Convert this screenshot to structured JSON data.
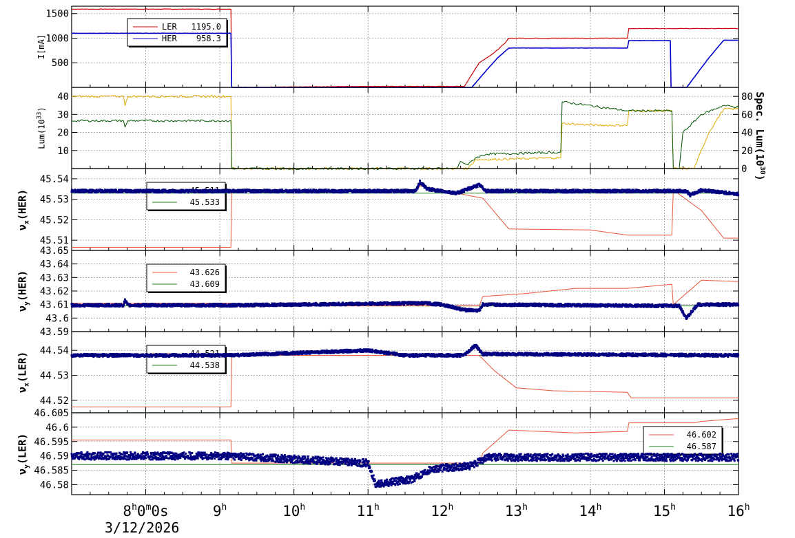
{
  "colors": {
    "ler": "#cc0000",
    "her": "#0000cc",
    "lum_gold": "#e0a800",
    "lum_green": "#005500",
    "tune_ref": "#e8553a",
    "tune_meas": "#000080",
    "tune_line": "#208020",
    "grid": "#999999"
  },
  "x_axis": {
    "range": [
      7.0,
      16.0
    ],
    "ticks": [
      {
        "v": 8,
        "label": "8",
        "sup": "h",
        "label2": "0",
        "sup2": "m",
        "label3": "0s"
      },
      {
        "v": 9,
        "label": "9",
        "sup": "h"
      },
      {
        "v": 10,
        "label": "10",
        "sup": "h"
      },
      {
        "v": 11,
        "label": "11",
        "sup": "h"
      },
      {
        "v": 12,
        "label": "12",
        "sup": "h"
      },
      {
        "v": 13,
        "label": "13",
        "sup": "h"
      },
      {
        "v": 14,
        "label": "14",
        "sup": "h"
      },
      {
        "v": 15,
        "label": "15",
        "sup": "h"
      },
      {
        "v": 16,
        "label": "16",
        "sup": "h"
      }
    ],
    "date": "3/12/2026"
  },
  "panels": [
    {
      "id": "current",
      "ylabel": "I[mA]",
      "ylim": [
        0,
        1650
      ],
      "yticks": [
        {
          "v": 500,
          "t": "500"
        },
        {
          "v": 1000,
          "t": "1000"
        },
        {
          "v": 1500,
          "t": "1500"
        }
      ],
      "legend": [
        {
          "name": "LER",
          "value": "1195.0",
          "color": "#cc0000"
        },
        {
          "name": "HER",
          "value": "958.3",
          "color": "#0000cc"
        }
      ]
    },
    {
      "id": "lumi",
      "ylabel": "Lum(10",
      "ylabel_sup": "33",
      "ylabel_end": ")",
      "ylim": [
        0,
        45
      ],
      "yticks": [
        {
          "v": 10,
          "t": "10"
        },
        {
          "v": 20,
          "t": "20"
        },
        {
          "v": 30,
          "t": "30"
        },
        {
          "v": 40,
          "t": "40"
        }
      ],
      "y2label": "Spec. Lum(10",
      "y2label_sup": "30",
      "y2label_end": ")",
      "y2lim": [
        0,
        90
      ],
      "y2ticks": [
        {
          "v": 0,
          "t": "0"
        },
        {
          "v": 20,
          "t": "20"
        },
        {
          "v": 40,
          "t": "40"
        },
        {
          "v": 60,
          "t": "60"
        },
        {
          "v": 80,
          "t": "80"
        }
      ]
    },
    {
      "id": "nux_her",
      "ylabel": "ν",
      "ylabel_sub": "x",
      "ylabel_end": "(HER)",
      "ylim": [
        45.505,
        45.545
      ],
      "yticks": [
        {
          "v": 45.51,
          "t": "45.51"
        },
        {
          "v": 45.52,
          "t": "45.52"
        },
        {
          "v": 45.53,
          "t": "45.53"
        },
        {
          "v": 45.54,
          "t": "45.54"
        }
      ],
      "legend": [
        {
          "value": "45.511",
          "color": "#e8553a"
        },
        {
          "value": "45.533",
          "color": "#208020"
        }
      ]
    },
    {
      "id": "nuy_her",
      "ylabel": "ν",
      "ylabel_sub": "y",
      "ylabel_end": "(HER)",
      "ylim": [
        43.59,
        43.65
      ],
      "yticks": [
        {
          "v": 43.59,
          "t": "43.59"
        },
        {
          "v": 43.6,
          "t": "43.6"
        },
        {
          "v": 43.61,
          "t": "43.61"
        },
        {
          "v": 43.62,
          "t": "43.62"
        },
        {
          "v": 43.63,
          "t": "43.63"
        },
        {
          "v": 43.64,
          "t": "43.64"
        },
        {
          "v": 43.65,
          "t": "43.65"
        }
      ],
      "legend": [
        {
          "value": "43.626",
          "color": "#e8553a"
        },
        {
          "value": "43.609",
          "color": "#208020"
        }
      ]
    },
    {
      "id": "nux_ler",
      "ylabel": "ν",
      "ylabel_sub": "x",
      "ylabel_end": "(LER)",
      "ylim": [
        44.515,
        44.5475
      ],
      "yticks": [
        {
          "v": 44.52,
          "t": "44.52"
        },
        {
          "v": 44.53,
          "t": "44.53"
        },
        {
          "v": 44.54,
          "t": "44.54"
        }
      ],
      "legend": [
        {
          "value": "44.521",
          "color": "#e8553a"
        },
        {
          "value": "44.538",
          "color": "#208020"
        }
      ]
    },
    {
      "id": "nuy_ler",
      "ylabel": "ν",
      "ylabel_sub": "y",
      "ylabel_end": "(LER)",
      "ylim": [
        46.5765,
        46.605
      ],
      "yticks": [
        {
          "v": 46.58,
          "t": "46.58"
        },
        {
          "v": 46.585,
          "t": "46.585"
        },
        {
          "v": 46.59,
          "t": "46.59"
        },
        {
          "v": 46.595,
          "t": "46.595"
        },
        {
          "v": 46.6,
          "t": "46.6"
        },
        {
          "v": 46.605,
          "t": "46.605"
        }
      ],
      "legend": [
        {
          "value": "46.602",
          "color": "#e8553a"
        },
        {
          "value": "46.587",
          "color": "#208020"
        }
      ]
    }
  ],
  "chart_data": {
    "type": "line",
    "x_unit": "hour of day",
    "series": [
      {
        "name": "LER",
        "panel": "current",
        "points": [
          [
            7.0,
            1590
          ],
          [
            9.15,
            1590
          ],
          [
            9.16,
            0
          ],
          [
            11.0,
            20
          ],
          [
            12.3,
            20
          ],
          [
            12.5,
            500
          ],
          [
            12.7,
            700
          ],
          [
            12.85,
            900
          ],
          [
            12.9,
            1000
          ],
          [
            14.5,
            1000
          ],
          [
            14.52,
            1195
          ],
          [
            16.0,
            1195
          ]
        ]
      },
      {
        "name": "HER",
        "panel": "current",
        "points": [
          [
            7.0,
            1100
          ],
          [
            9.15,
            1100
          ],
          [
            9.16,
            0
          ],
          [
            11.0,
            0
          ],
          [
            12.4,
            0
          ],
          [
            12.6,
            350
          ],
          [
            12.75,
            600
          ],
          [
            12.9,
            800
          ],
          [
            14.5,
            800
          ],
          [
            14.52,
            950
          ],
          [
            15.08,
            950
          ],
          [
            15.09,
            0
          ],
          [
            15.3,
            0
          ],
          [
            15.6,
            600
          ],
          [
            15.8,
            958
          ],
          [
            16.0,
            958
          ]
        ]
      },
      {
        "name": "",
        "panel": "lumi",
        "points": [
          [
            7.0,
            40
          ],
          [
            7.7,
            40
          ],
          [
            7.72,
            35
          ],
          [
            7.76,
            40
          ],
          [
            9.15,
            40
          ],
          [
            9.16,
            0
          ],
          [
            12.35,
            0
          ],
          [
            12.45,
            5
          ],
          [
            12.6,
            5
          ],
          [
            13.6,
            6
          ],
          [
            13.62,
            25
          ],
          [
            14.1,
            24
          ],
          [
            14.5,
            24
          ],
          [
            14.52,
            32
          ],
          [
            15.1,
            32
          ],
          [
            15.12,
            0
          ],
          [
            15.4,
            0
          ],
          [
            15.6,
            20
          ],
          [
            15.8,
            33
          ],
          [
            16.0,
            33
          ]
        ]
      },
      {
        "name": "",
        "panel": "lumi",
        "points": [
          [
            7.0,
            26.5
          ],
          [
            7.7,
            26.5
          ],
          [
            7.72,
            23
          ],
          [
            7.76,
            26.5
          ],
          [
            9.15,
            26.5
          ],
          [
            9.16,
            0
          ],
          [
            12.2,
            0
          ],
          [
            12.25,
            4
          ],
          [
            12.35,
            2
          ],
          [
            12.45,
            6
          ],
          [
            12.6,
            8
          ],
          [
            13.6,
            9
          ],
          [
            13.62,
            37
          ],
          [
            14.5,
            32
          ],
          [
            15.1,
            32
          ],
          [
            15.12,
            0
          ],
          [
            15.2,
            0
          ],
          [
            15.25,
            20
          ],
          [
            15.5,
            30
          ],
          [
            15.8,
            35
          ],
          [
            16.0,
            34
          ]
        ]
      },
      {
        "name": "",
        "panel": "nux_her",
        "points": [
          [
            7.0,
            45.5065
          ],
          [
            9.15,
            45.5065
          ],
          [
            9.16,
            45.534
          ],
          [
            11.65,
            45.534
          ],
          [
            11.7,
            45.5365
          ],
          [
            12.55,
            45.5305
          ],
          [
            12.9,
            45.5155
          ],
          [
            14.0,
            45.515
          ],
          [
            14.5,
            45.5125
          ],
          [
            15.1,
            45.5125
          ],
          [
            15.12,
            45.5345
          ],
          [
            15.5,
            45.5245
          ],
          [
            15.8,
            45.511
          ],
          [
            16.0,
            45.511
          ]
        ]
      },
      {
        "name": "",
        "panel": "nux_her",
        "points": [
          [
            7.0,
            45.534
          ],
          [
            11.65,
            45.534
          ],
          [
            11.7,
            45.5385
          ],
          [
            11.8,
            45.535
          ],
          [
            12.2,
            45.533
          ],
          [
            12.5,
            45.537
          ],
          [
            12.6,
            45.534
          ],
          [
            15.3,
            45.534
          ],
          [
            15.35,
            45.532
          ],
          [
            15.5,
            45.5345
          ],
          [
            16.0,
            45.5325
          ]
        ]
      },
      {
        "name": "",
        "panel": "nuy_her",
        "points": [
          [
            7.0,
            43.611
          ],
          [
            9.15,
            43.611
          ],
          [
            9.16,
            43.609
          ],
          [
            12.5,
            43.609
          ],
          [
            12.55,
            43.616
          ],
          [
            13.1,
            43.618
          ],
          [
            13.8,
            43.622
          ],
          [
            14.5,
            43.622
          ],
          [
            15.1,
            43.625
          ],
          [
            15.12,
            43.61
          ],
          [
            15.5,
            43.628
          ],
          [
            16.0,
            43.627
          ]
        ]
      },
      {
        "name": "",
        "panel": "nuy_her",
        "points": [
          [
            7.0,
            43.6095
          ],
          [
            7.7,
            43.6095
          ],
          [
            7.72,
            43.613
          ],
          [
            7.76,
            43.6095
          ],
          [
            9.15,
            43.6095
          ],
          [
            11.75,
            43.611
          ],
          [
            12.0,
            43.61
          ],
          [
            12.3,
            43.606
          ],
          [
            12.5,
            43.6055
          ],
          [
            12.55,
            43.61
          ],
          [
            15.2,
            43.609
          ],
          [
            15.3,
            43.6
          ],
          [
            15.45,
            43.61
          ],
          [
            16.0,
            43.61
          ]
        ]
      },
      {
        "name": "",
        "panel": "nux_ler",
        "points": [
          [
            7.0,
            44.5173
          ],
          [
            9.15,
            44.5173
          ],
          [
            9.16,
            44.538
          ],
          [
            12.5,
            44.538
          ],
          [
            12.7,
            44.532
          ],
          [
            13.0,
            44.525
          ],
          [
            13.5,
            44.5238
          ],
          [
            14.5,
            44.5232
          ],
          [
            14.55,
            44.521
          ],
          [
            16.0,
            44.521
          ]
        ]
      },
      {
        "name": "",
        "panel": "nux_ler",
        "points": [
          [
            7.0,
            44.538
          ],
          [
            9.15,
            44.538
          ],
          [
            11.0,
            44.54
          ],
          [
            11.5,
            44.538
          ],
          [
            11.6,
            44.538
          ],
          [
            11.8,
            44.538
          ],
          [
            12.3,
            44.538
          ],
          [
            12.45,
            44.542
          ],
          [
            12.55,
            44.5385
          ],
          [
            16.0,
            44.538
          ]
        ]
      },
      {
        "name": "",
        "panel": "nuy_ler",
        "points": [
          [
            7.0,
            46.5955
          ],
          [
            9.15,
            46.5955
          ],
          [
            9.16,
            46.5875
          ],
          [
            12.5,
            46.5875
          ],
          [
            12.55,
            46.591
          ],
          [
            12.9,
            46.599
          ],
          [
            13.8,
            46.598
          ],
          [
            14.5,
            46.5985
          ],
          [
            14.52,
            46.6015
          ],
          [
            15.4,
            46.6015
          ],
          [
            15.5,
            46.602
          ],
          [
            16.0,
            46.603
          ]
        ]
      },
      {
        "name": "",
        "panel": "nuy_ler",
        "points": [
          [
            7.0,
            46.59
          ],
          [
            9.15,
            46.59
          ],
          [
            11.0,
            46.5875
          ],
          [
            11.1,
            46.58
          ],
          [
            11.6,
            46.582
          ],
          [
            11.85,
            46.5855
          ],
          [
            12.4,
            46.5865
          ],
          [
            12.5,
            46.588
          ],
          [
            12.6,
            46.5895
          ],
          [
            16.0,
            46.5895
          ]
        ]
      },
      {
        "name": "",
        "panel": "nux_her_line",
        "points": [
          [
            7.0,
            45.533
          ],
          [
            16.0,
            45.533
          ]
        ]
      },
      {
        "name": "",
        "panel": "nuy_her_line",
        "points": [
          [
            7.0,
            43.609
          ],
          [
            16.0,
            43.609
          ]
        ]
      },
      {
        "name": "",
        "panel": "nux_ler_line",
        "points": [
          [
            7.0,
            44.538
          ],
          [
            16.0,
            44.538
          ]
        ]
      },
      {
        "name": "",
        "panel": "nuy_ler_line",
        "points": [
          [
            7.0,
            46.587
          ],
          [
            16.0,
            46.587
          ]
        ]
      }
    ]
  }
}
